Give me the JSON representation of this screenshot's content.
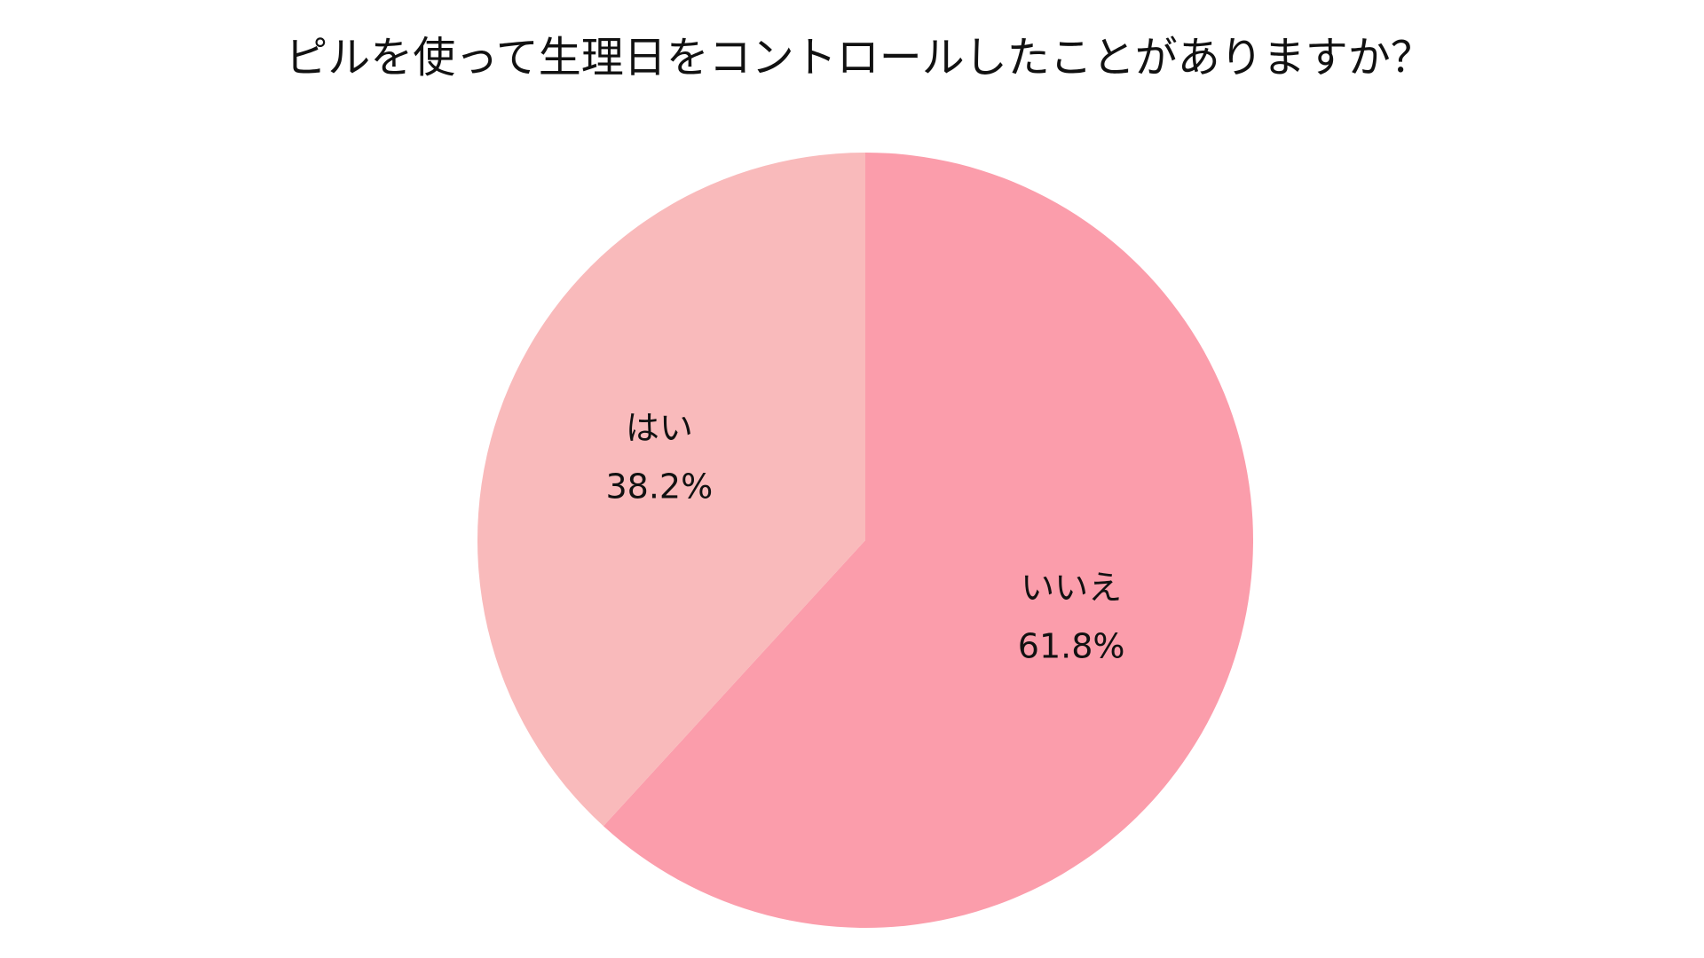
{
  "chart_data": {
    "type": "pie",
    "title": "ピルを使って生理日をコントロールしたことがありますか？",
    "categories": [
      "いいえ",
      "はい"
    ],
    "values": [
      61.8,
      38.2
    ],
    "value_labels": [
      "61.8%",
      "38.2%"
    ],
    "colors": [
      "#fb9dab",
      "#f9babb"
    ],
    "start_angle": 0,
    "direction": "clockwise"
  }
}
